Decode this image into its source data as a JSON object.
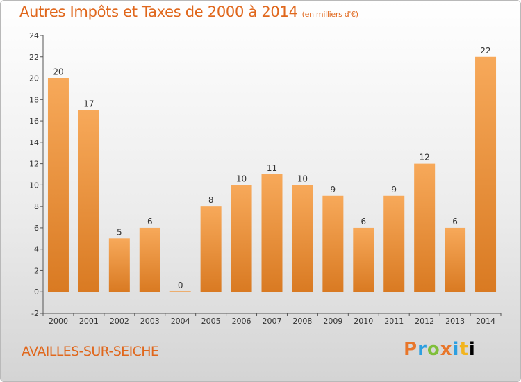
{
  "header": {
    "title": "Autres Impôts et Taxes de 2000 à 2014",
    "unit": "(en milliers d'€)"
  },
  "footer": {
    "town": "AVAILLES-SUR-SEICHE",
    "logo": [
      "P",
      "r",
      "o",
      "x",
      "i",
      "t",
      "i"
    ]
  },
  "colors": {
    "bar_top": "#f7a95a",
    "bar_bottom": "#d97a22",
    "title": "#e0671c"
  },
  "chart_data": {
    "type": "bar",
    "title": "Autres Impôts et Taxes de 2000 à 2014",
    "subtitle": "(en milliers d'€)",
    "xlabel": "",
    "ylabel": "",
    "categories": [
      "2000",
      "2001",
      "2002",
      "2003",
      "2004",
      "2005",
      "2006",
      "2007",
      "2008",
      "2009",
      "2010",
      "2011",
      "2012",
      "2013",
      "2014"
    ],
    "values": [
      20,
      17,
      5,
      6,
      0,
      8,
      10,
      11,
      10,
      9,
      6,
      9,
      12,
      6,
      22
    ],
    "ylim": [
      -2,
      24
    ],
    "yticks": [
      -2,
      0,
      2,
      4,
      6,
      8,
      10,
      12,
      14,
      16,
      18,
      20,
      22,
      24
    ],
    "grid": false,
    "legend": "none"
  }
}
